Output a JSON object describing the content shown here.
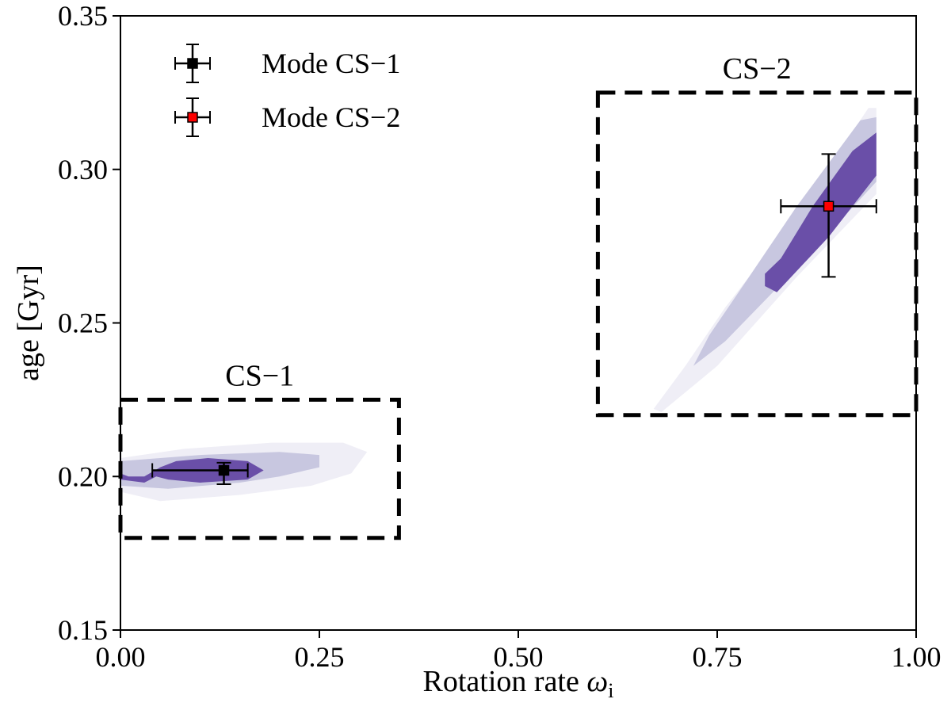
{
  "chart_data": {
    "type": "scatter",
    "xlabel": "Rotation rate ",
    "xlabel_symbol": "ω",
    "xlabel_subscript": "i",
    "ylabel": "age [Gyr]",
    "xlim": [
      0.0,
      1.0
    ],
    "ylim": [
      0.15,
      0.35
    ],
    "xticks": [
      "0.00",
      "0.25",
      "0.50",
      "0.75",
      "1.00"
    ],
    "yticks": [
      "0.15",
      "0.20",
      "0.25",
      "0.30",
      "0.35"
    ],
    "grid": false,
    "legend_position": "top-left",
    "series": [
      {
        "name": "Mode CS−1",
        "color": "#000000",
        "x": 0.13,
        "y": 0.202,
        "x_err": [
          0.09,
          0.03
        ],
        "y_err": [
          0.0045,
          0.0025
        ]
      },
      {
        "name": "Mode CS−2",
        "color": "#ff0000",
        "x": 0.89,
        "y": 0.288,
        "x_err": [
          0.06,
          0.06
        ],
        "y_err": [
          0.023,
          0.017
        ]
      }
    ],
    "boxes": [
      {
        "label": "CS−1",
        "x": [
          0.0,
          0.35
        ],
        "y": [
          0.18,
          0.225
        ]
      },
      {
        "label": "CS−2",
        "x": [
          0.6,
          1.0
        ],
        "y": [
          0.22,
          0.325
        ]
      }
    ],
    "density_colors": [
      "#efeef6",
      "#c8c7e0",
      "#6a4fa8"
    ],
    "contours": [
      {
        "level": 0,
        "color": "#efeef6",
        "points": [
          [
            0.0,
            0.195
          ],
          [
            0.05,
            0.192
          ],
          [
            0.15,
            0.194
          ],
          [
            0.24,
            0.197
          ],
          [
            0.29,
            0.201
          ],
          [
            0.31,
            0.208
          ],
          [
            0.28,
            0.211
          ],
          [
            0.19,
            0.211
          ],
          [
            0.08,
            0.209
          ],
          [
            0.0,
            0.206
          ]
        ]
      },
      {
        "level": 1,
        "color": "#c8c7e0",
        "points": [
          [
            0.0,
            0.197
          ],
          [
            0.06,
            0.196
          ],
          [
            0.15,
            0.198
          ],
          [
            0.2,
            0.2
          ],
          [
            0.25,
            0.203
          ],
          [
            0.25,
            0.207
          ],
          [
            0.2,
            0.208
          ],
          [
            0.1,
            0.207
          ],
          [
            0.0,
            0.205
          ]
        ]
      },
      {
        "level": 2,
        "color": "#6a4fa8",
        "points": [
          [
            0.0,
            0.199
          ],
          [
            0.03,
            0.198
          ],
          [
            0.045,
            0.2
          ],
          [
            0.06,
            0.199
          ],
          [
            0.1,
            0.198
          ],
          [
            0.16,
            0.199
          ],
          [
            0.18,
            0.202
          ],
          [
            0.16,
            0.205
          ],
          [
            0.11,
            0.206
          ],
          [
            0.07,
            0.205
          ],
          [
            0.05,
            0.203
          ],
          [
            0.03,
            0.2
          ],
          [
            0.01,
            0.2
          ],
          [
            0.0,
            0.201
          ]
        ]
      },
      {
        "level": 0,
        "color": "#efeef6",
        "points": [
          [
            0.67,
            0.222
          ],
          [
            0.68,
            0.221
          ],
          [
            0.75,
            0.236
          ],
          [
            0.85,
            0.265
          ],
          [
            0.95,
            0.292
          ],
          [
            0.95,
            0.32
          ],
          [
            0.94,
            0.32
          ],
          [
            0.85,
            0.285
          ],
          [
            0.76,
            0.255
          ],
          [
            0.71,
            0.236
          ]
        ]
      },
      {
        "level": 1,
        "color": "#c8c7e0",
        "points": [
          [
            0.72,
            0.236
          ],
          [
            0.76,
            0.244
          ],
          [
            0.85,
            0.268
          ],
          [
            0.95,
            0.296
          ],
          [
            0.95,
            0.317
          ],
          [
            0.93,
            0.316
          ],
          [
            0.85,
            0.288
          ],
          [
            0.79,
            0.265
          ],
          [
            0.74,
            0.246
          ]
        ]
      },
      {
        "level": 2,
        "color": "#6a4fa8",
        "points": [
          [
            0.81,
            0.262
          ],
          [
            0.825,
            0.26
          ],
          [
            0.89,
            0.278
          ],
          [
            0.95,
            0.298
          ],
          [
            0.95,
            0.312
          ],
          [
            0.92,
            0.306
          ],
          [
            0.87,
            0.288
          ],
          [
            0.83,
            0.271
          ],
          [
            0.81,
            0.266
          ]
        ]
      }
    ]
  }
}
